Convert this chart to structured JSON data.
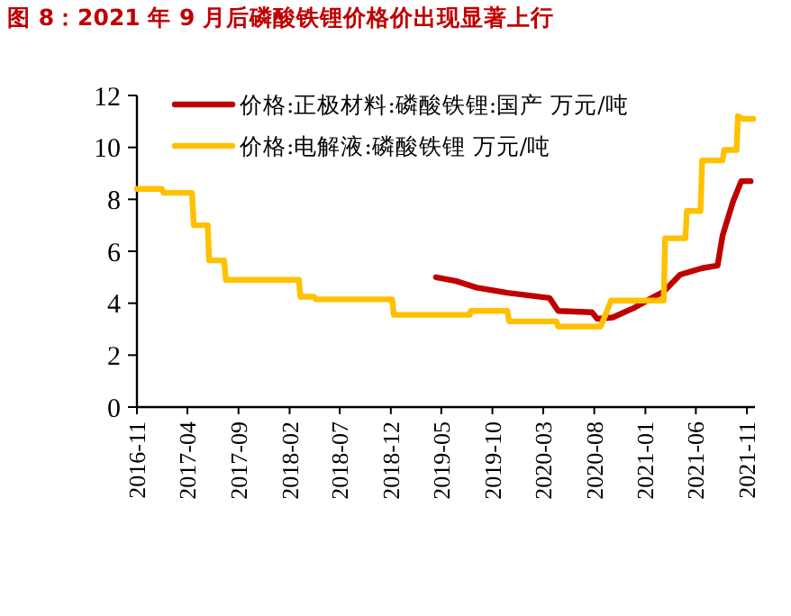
{
  "chart_data": {
    "type": "line",
    "title": "图 8：2021 年 9 月后磷酸铁锂价格价出现显著上行",
    "xlim": [
      "2016-11-01",
      "2021-11-25"
    ],
    "xticks": [
      "2016-11",
      "2017-04",
      "2017-09",
      "2018-02",
      "2018-07",
      "2018-12",
      "2019-05",
      "2019-10",
      "2020-03",
      "2020-08",
      "2021-01",
      "2021-06",
      "2021-11"
    ],
    "ylim": [
      0,
      12
    ],
    "yticks": [
      0,
      2,
      4,
      6,
      8,
      10,
      12
    ],
    "grid": false,
    "legend": "top",
    "marker": "none",
    "line_style": "solid",
    "series": [
      {
        "name": "价格:正极材料:磷酸铁锂:国产 万元/吨",
        "color": "#c00000",
        "x": [
          "2019-04-15",
          "2019-06-15",
          "2019-08-15",
          "2019-11-15",
          "2020-03-20",
          "2020-04-15",
          "2020-07-25",
          "2020-08-10",
          "2020-09-25",
          "2020-11-25",
          "2021-01-20",
          "2021-02-25",
          "2021-04-15",
          "2021-06-20",
          "2021-08-05",
          "2021-08-20",
          "2021-09-20",
          "2021-10-15",
          "2021-11-12"
        ],
        "values": [
          5.0,
          4.85,
          4.6,
          4.4,
          4.2,
          3.7,
          3.65,
          3.4,
          3.45,
          3.8,
          4.2,
          4.45,
          5.1,
          5.35,
          5.45,
          6.6,
          7.9,
          8.7,
          8.7
        ]
      },
      {
        "name": "价格:电解液:磷酸铁锂 万元/吨",
        "color": "#ffc000",
        "x": [
          "2016-11-01",
          "2017-01-15",
          "2017-01-20",
          "2017-04-15",
          "2017-04-20",
          "2017-06-01",
          "2017-06-05",
          "2017-07-20",
          "2017-07-25",
          "2018-03-01",
          "2018-03-05",
          "2018-04-15",
          "2018-04-20",
          "2018-12-05",
          "2018-12-10",
          "2019-07-25",
          "2019-07-28",
          "2019-11-15",
          "2019-11-20",
          "2020-04-10",
          "2020-04-15",
          "2020-08-20",
          "2020-09-05",
          "2020-09-20",
          "2021-02-25",
          "2021-03-01",
          "2021-05-01",
          "2021-05-05",
          "2021-06-15",
          "2021-06-20",
          "2021-08-20",
          "2021-08-25",
          "2021-10-01",
          "2021-10-05",
          "2021-10-20",
          "2021-11-20"
        ],
        "values": [
          8.4,
          8.4,
          8.25,
          8.25,
          7.0,
          7.0,
          5.65,
          5.65,
          4.9,
          4.9,
          4.25,
          4.25,
          4.15,
          4.15,
          3.55,
          3.55,
          3.7,
          3.7,
          3.3,
          3.3,
          3.1,
          3.1,
          3.6,
          4.1,
          4.1,
          6.5,
          6.5,
          7.55,
          7.55,
          9.5,
          9.5,
          9.9,
          9.9,
          11.2,
          11.1,
          11.1
        ]
      }
    ]
  }
}
